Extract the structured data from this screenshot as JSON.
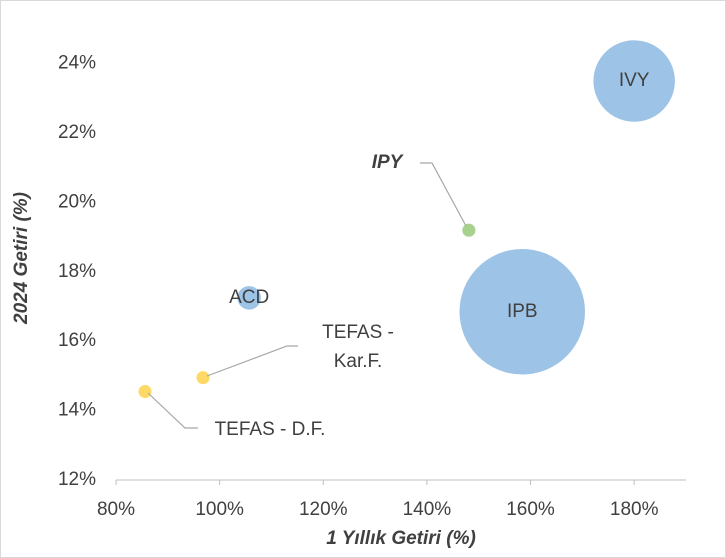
{
  "chart_data": {
    "type": "bubble",
    "xlabel": "1 Yıllık Getiri (%)",
    "ylabel": "2024 Getiri (%)",
    "xlim": [
      80,
      190
    ],
    "xticks": [
      {
        "value": 80,
        "label": "80%"
      },
      {
        "value": 100,
        "label": "100%"
      },
      {
        "value": 120,
        "label": "120%"
      },
      {
        "value": 140,
        "label": "140%"
      },
      {
        "value": 160,
        "label": "160%"
      },
      {
        "value": 180,
        "label": "180%"
      }
    ],
    "ylim": [
      12,
      25
    ],
    "yticks": [
      {
        "value": 12,
        "label": "12%"
      },
      {
        "value": 14,
        "label": "14%"
      },
      {
        "value": 16,
        "label": "16%"
      },
      {
        "value": 18,
        "label": "18%"
      },
      {
        "value": 20,
        "label": "20%"
      },
      {
        "value": 22,
        "label": "22%"
      },
      {
        "value": 24,
        "label": "24%"
      }
    ],
    "points": [
      {
        "name": "IVY",
        "x": 180,
        "y": 23.5,
        "size": 17,
        "color": "#9dc3e6"
      },
      {
        "name": "IPB",
        "x": 158.4,
        "y": 16.85,
        "size": 40,
        "color": "#9dc3e6"
      },
      {
        "name": "IPY",
        "x": 148.1,
        "y": 19.2,
        "size": 0.5,
        "color": "#a9d18e"
      },
      {
        "name": "ACD",
        "x": 105.7,
        "y": 17.25,
        "size": 1.5,
        "color": "#9dc3e6"
      },
      {
        "name": "TEFAS - Kar.F.",
        "x": 96.8,
        "y": 14.95,
        "size": 0.5,
        "color": "#ffd966"
      },
      {
        "name": "TEFAS - D.F.",
        "x": 85.6,
        "y": 14.55,
        "size": 0.5,
        "color": "#ffd966"
      }
    ]
  }
}
